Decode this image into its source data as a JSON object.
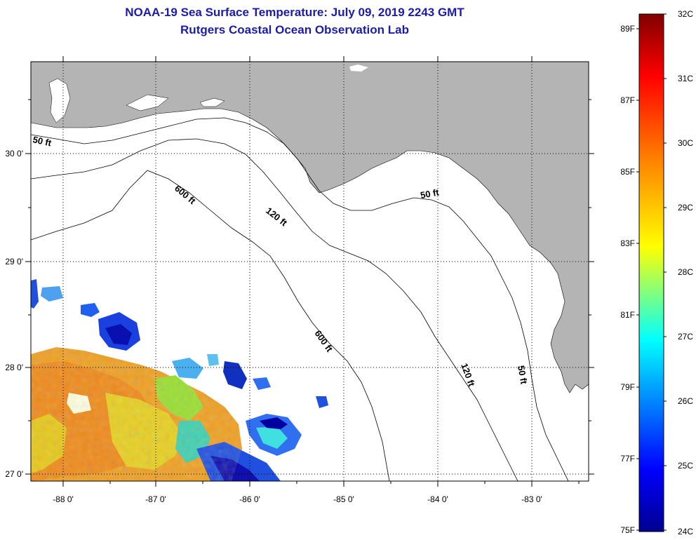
{
  "title_line1": "NOAA-19 Sea Surface Temperature:  July 09, 2019 2243 GMT",
  "title_line2": "Rutgers Coastal Ocean Observation Lab",
  "map": {
    "lon_ticks": [
      "-88 0'",
      "-87 0'",
      "-86 0'",
      "-85 0'",
      "-84 0'",
      "-83 0'"
    ],
    "lat_ticks": [
      "30 0'",
      "29 0'",
      "28 0'",
      "27 0'"
    ],
    "contour_labels": [
      "50 ft",
      "600 ft",
      "120 ft",
      "50 ft",
      "600 ft",
      "120 ft",
      "50 ft"
    ],
    "land_color": "#b4b4b4",
    "ocean_color": "#ffffff"
  },
  "colorbar": {
    "fahrenheit_labels": [
      "89F",
      "87F",
      "85F",
      "83F",
      "81F",
      "79F",
      "77F",
      "75F"
    ],
    "celsius_labels": [
      "32C",
      "31C",
      "30C",
      "29C",
      "28C",
      "27C",
      "26C",
      "25C",
      "24C"
    ],
    "colors": [
      "#00008f",
      "#0000ff",
      "#00ffff",
      "#ffff00",
      "#ff7f00",
      "#ff0000",
      "#800000"
    ]
  }
}
